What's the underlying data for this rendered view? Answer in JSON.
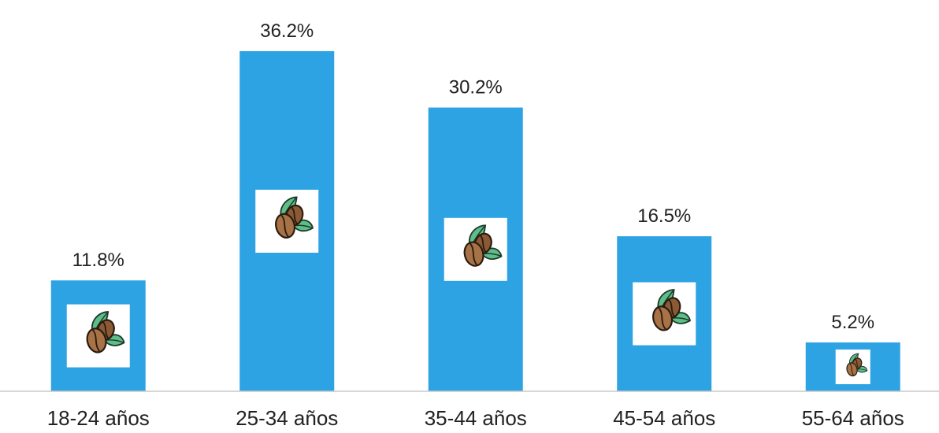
{
  "chart_data": {
    "type": "bar",
    "categories": [
      "18-24 años",
      "25-34 años",
      "35-44 años",
      "45-54 años",
      "55-64 años"
    ],
    "values": [
      11.8,
      36.2,
      30.2,
      16.5,
      5.2
    ],
    "value_labels": [
      "11.8%",
      "36.2%",
      "30.2%",
      "16.5%",
      "5.2%"
    ],
    "bar_color": "#2EA3E3",
    "axis_color": "#C8C8C8",
    "ylim": [
      0,
      36.2
    ],
    "grid": false,
    "legend": "none",
    "bar_icon": "coffee-beans-icon",
    "title": "",
    "xlabel": "",
    "ylabel": ""
  }
}
